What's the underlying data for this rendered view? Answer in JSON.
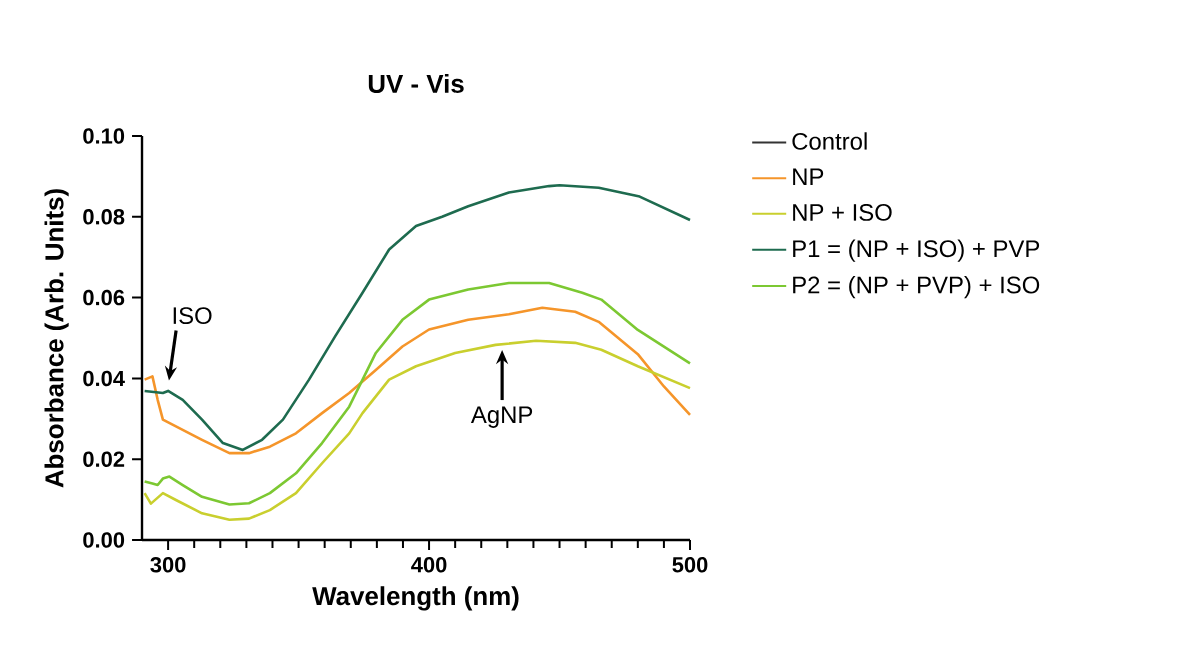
{
  "chart_data": {
    "type": "line",
    "title": "UV - Vis",
    "xlabel": "Wavelength (nm)",
    "ylabel": "Absorbance (Arb. Units)",
    "xlim": [
      290,
      500
    ],
    "ylim": [
      0,
      0.1
    ],
    "xticks": [
      300,
      400,
      500
    ],
    "yticks": [
      {
        "value": 0,
        "label": "0.00"
      },
      {
        "value": 0.02,
        "label": "0.02"
      },
      {
        "value": 0.04,
        "label": "0.04"
      },
      {
        "value": 0.06,
        "label": "0.06"
      },
      {
        "value": 0.08,
        "label": "0.08"
      },
      {
        "value": 0.1,
        "label": "0.10"
      }
    ],
    "grid": false,
    "legend": "right",
    "marker": "none",
    "line_style": "solid",
    "annotations": [
      {
        "text": "ISO",
        "x": 300,
        "y": 0.038
      },
      {
        "text": "AgNP",
        "x": 428,
        "y": 0.0485
      }
    ],
    "series": [
      {
        "name": "Control",
        "color": "#333333"
      },
      {
        "name": "NP",
        "color": "#f5952a",
        "x": [
          291,
          294,
          296,
          298,
          303,
          313,
          323.5,
          331,
          339,
          349,
          359,
          369.4,
          379.6,
          389.8,
          400,
          415,
          430.6,
          443.4,
          456,
          465,
          480,
          490,
          500
        ],
        "values": [
          0.0397,
          0.0405,
          0.0347,
          0.0298,
          0.0281,
          0.0248,
          0.0215,
          0.0215,
          0.0231,
          0.0264,
          0.0314,
          0.0364,
          0.0421,
          0.0479,
          0.0521,
          0.0545,
          0.0559,
          0.0575,
          0.0565,
          0.054,
          0.046,
          0.038,
          0.031
        ]
      },
      {
        "name": "NP + ISO",
        "color": "#c9cf2e",
        "x": [
          291,
          293.4,
          298,
          303,
          313,
          323.5,
          331,
          339,
          349,
          359,
          369.4,
          374.5,
          384.7,
          395,
          410,
          425.5,
          441,
          456,
          466,
          480,
          500
        ],
        "values": [
          0.0116,
          0.009,
          0.0116,
          0.0099,
          0.0066,
          0.005,
          0.0053,
          0.0074,
          0.0116,
          0.019,
          0.0264,
          0.0314,
          0.0397,
          0.043,
          0.0463,
          0.0483,
          0.0493,
          0.0488,
          0.0471,
          0.043,
          0.0376
        ]
      },
      {
        "name": "P1 = (NP + ISO) + PVP",
        "color": "#1e6b4f",
        "x": [
          291,
          298,
          300,
          305.6,
          313,
          321,
          328.6,
          336,
          344,
          354,
          364,
          374.5,
          384.7,
          395,
          405,
          415,
          430.6,
          446,
          450,
          465,
          480.7,
          500
        ],
        "values": [
          0.0369,
          0.0364,
          0.0369,
          0.0347,
          0.0298,
          0.024,
          0.0223,
          0.0248,
          0.0298,
          0.0397,
          0.0504,
          0.0612,
          0.0719,
          0.0777,
          0.08,
          0.0826,
          0.086,
          0.0876,
          0.0878,
          0.0872,
          0.085,
          0.0792
        ]
      },
      {
        "name": "P2 = (NP + PVP) + ISO",
        "color": "#7cc832",
        "x": [
          291,
          294,
          296,
          298,
          300.5,
          305.6,
          313,
          323.5,
          331,
          339,
          349,
          359,
          369.4,
          379.6,
          389.8,
          400,
          415,
          430.6,
          446,
          458.7,
          466,
          480,
          500
        ],
        "values": [
          0.0145,
          0.014,
          0.0136,
          0.0152,
          0.0157,
          0.0136,
          0.0107,
          0.0088,
          0.0091,
          0.0116,
          0.0165,
          0.024,
          0.033,
          0.0463,
          0.0545,
          0.0595,
          0.062,
          0.0636,
          0.0636,
          0.0612,
          0.0595,
          0.052,
          0.0437
        ]
      }
    ]
  }
}
